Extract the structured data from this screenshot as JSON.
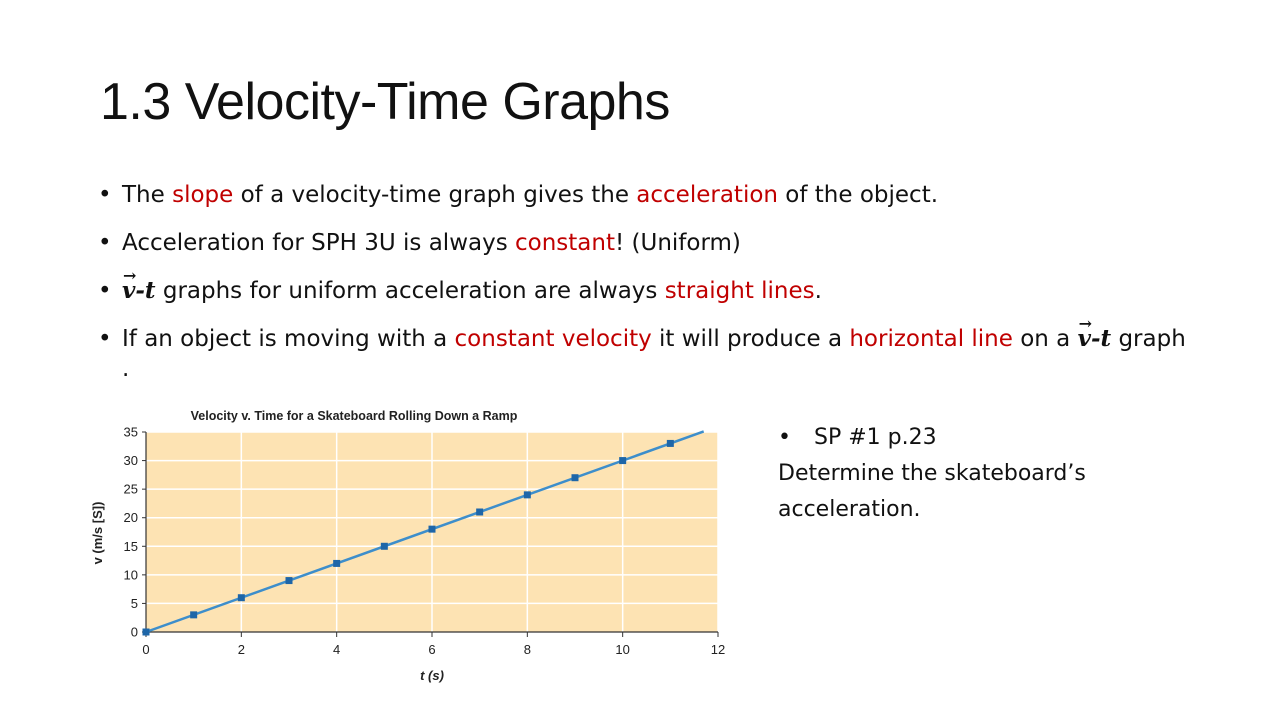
{
  "slide": {
    "title": "1.3 Velocity-Time Graphs"
  },
  "bullets": {
    "b1": {
      "p1": "The ",
      "r1": "slope",
      "p2": " of a velocity-time graph gives the ",
      "r2": "acceleration",
      "p3": " of the object."
    },
    "b2": {
      "p1": "Acceleration for SPH 3U is always ",
      "r1": "constant",
      "p2": "! (Uniform)"
    },
    "b3": {
      "v": "v",
      "dash": "-",
      "t": "t",
      "p1": " graphs for uniform acceleration are always ",
      "r1": "straight lines",
      "p2": "."
    },
    "b4": {
      "p1": "If an object is moving with a ",
      "r1": "constant velocity",
      "p2": " it will produce a ",
      "r2": "horizontal line",
      "p3": " on a ",
      "v": "v",
      "dash": "-",
      "t": "t",
      "p4": " graph ."
    }
  },
  "side": {
    "bullet": "SP #1 p.23",
    "line1": "Determine the skateboard’s",
    "line2": "acceleration."
  },
  "chart_data": {
    "type": "line",
    "title": "Velocity v. Time for a Skateboard Rolling Down a Ramp",
    "xlabel": "t (s)",
    "ylabel": "v (m/s [S])",
    "xlim": [
      0,
      12
    ],
    "ylim": [
      0,
      35
    ],
    "xticks": [
      0,
      2,
      4,
      6,
      8,
      10,
      12
    ],
    "yticks": [
      0,
      5,
      10,
      15,
      20,
      25,
      30,
      35
    ],
    "grid": true,
    "colors": {
      "plot_bg": "#fde3b3",
      "line": "#3d8ecb",
      "marker": "#1e66a8",
      "grid": "#ffffff"
    },
    "line_end": [
      11.7,
      35.1
    ],
    "series": [
      {
        "x": [
          0,
          1,
          2,
          3,
          4,
          5,
          6,
          7,
          8,
          9,
          10,
          11
        ],
        "values": [
          0,
          3,
          6,
          9,
          12,
          15,
          18,
          21,
          24,
          27,
          30,
          33
        ]
      }
    ]
  }
}
